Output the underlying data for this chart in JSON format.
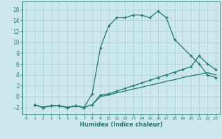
{
  "xlabel": "Humidex (Indice chaleur)",
  "xlim": [
    -0.5,
    23.5
  ],
  "ylim": [
    -3.2,
    17.5
  ],
  "xticks": [
    0,
    1,
    2,
    3,
    4,
    5,
    6,
    7,
    8,
    9,
    10,
    11,
    12,
    13,
    14,
    15,
    16,
    17,
    18,
    19,
    20,
    21,
    22,
    23
  ],
  "yticks": [
    -2,
    0,
    2,
    4,
    6,
    8,
    10,
    12,
    14,
    16
  ],
  "bg_color": "#cde8ec",
  "line_color": "#1e7870",
  "grid_color": "#aacfd4",
  "curve1_x": [
    1,
    2,
    3,
    4,
    5,
    6,
    7,
    8,
    9,
    10,
    11,
    12,
    13,
    14,
    15,
    16,
    17,
    18,
    20,
    21,
    22,
    23
  ],
  "curve1_y": [
    -1.5,
    -2.0,
    -1.7,
    -1.7,
    -2.0,
    -1.7,
    -2.0,
    0.5,
    9.0,
    13.0,
    14.5,
    14.5,
    15.0,
    15.0,
    14.5,
    15.7,
    14.5,
    10.5,
    7.5,
    6.0,
    4.0,
    3.5
  ],
  "curve2_x": [
    1,
    2,
    3,
    4,
    5,
    6,
    7,
    8,
    9,
    10,
    11,
    12,
    13,
    14,
    15,
    16,
    17,
    18,
    19,
    20,
    21,
    22,
    23
  ],
  "curve2_y": [
    -1.5,
    -2.0,
    -1.7,
    -1.7,
    -2.0,
    -1.7,
    -2.0,
    -1.5,
    0.3,
    0.5,
    1.0,
    1.5,
    2.0,
    2.5,
    3.0,
    3.5,
    4.0,
    4.5,
    5.0,
    5.5,
    7.5,
    6.0,
    5.0
  ],
  "curve3_x": [
    1,
    2,
    3,
    4,
    5,
    6,
    7,
    8,
    9,
    10,
    11,
    12,
    13,
    14,
    15,
    16,
    17,
    18,
    19,
    20,
    21,
    22,
    23
  ],
  "curve3_y": [
    -1.5,
    -2.0,
    -1.7,
    -1.7,
    -2.0,
    -1.7,
    -2.0,
    -1.5,
    0.0,
    0.3,
    0.7,
    1.0,
    1.4,
    1.7,
    2.1,
    2.4,
    2.8,
    3.1,
    3.5,
    3.8,
    4.1,
    4.4,
    4.0
  ]
}
